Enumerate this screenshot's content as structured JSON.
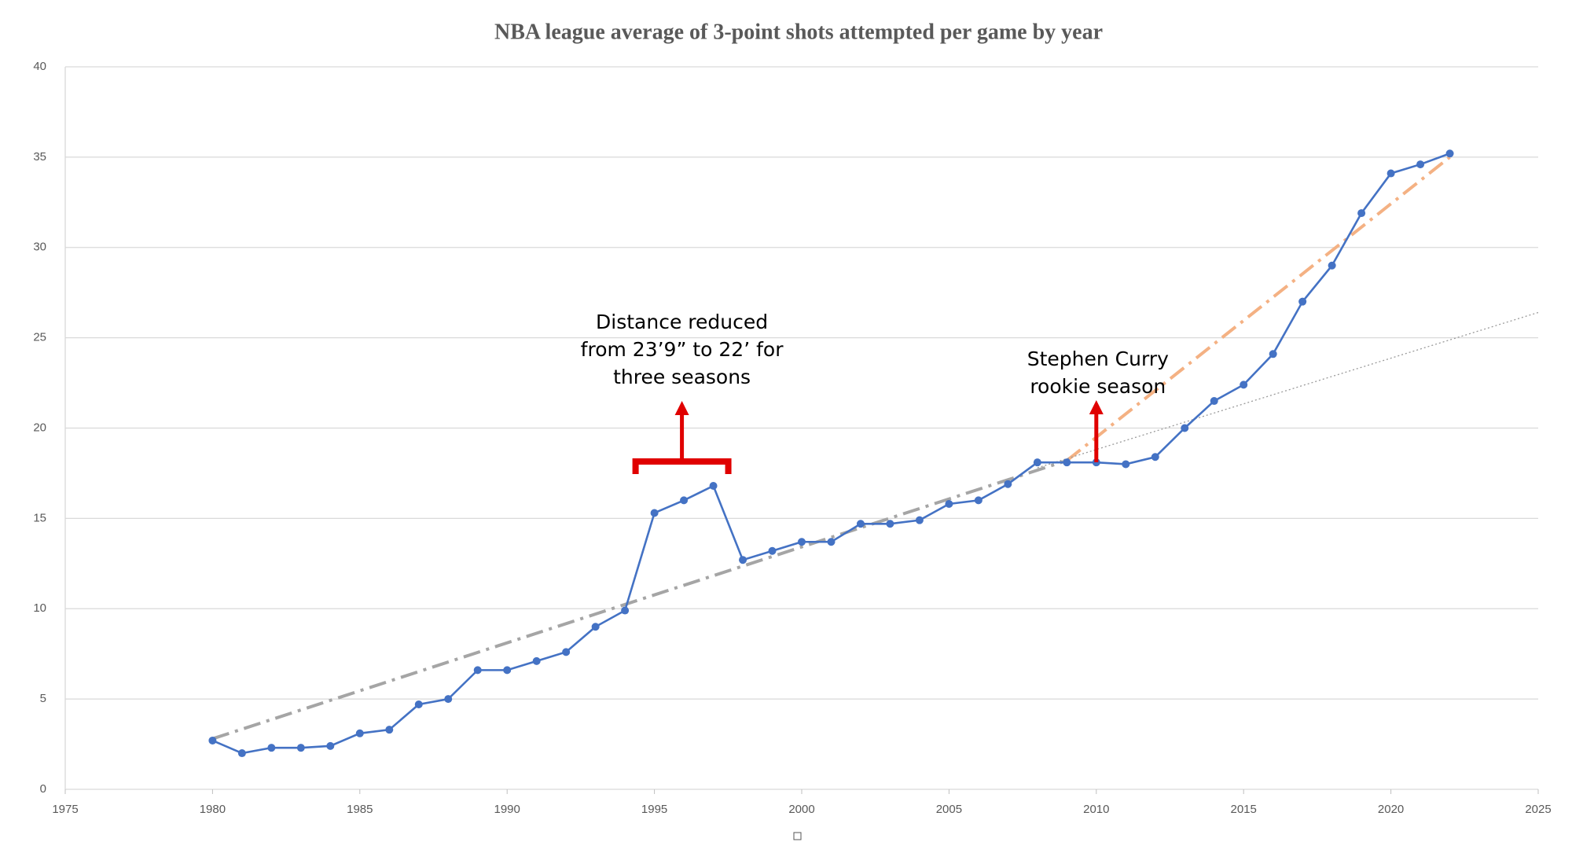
{
  "chart_data": {
    "type": "line",
    "title": "NBA league average of 3-point shots attempted per game by year",
    "x": [
      1980,
      1981,
      1982,
      1983,
      1984,
      1985,
      1986,
      1987,
      1988,
      1989,
      1990,
      1991,
      1992,
      1993,
      1994,
      1995,
      1996,
      1997,
      1998,
      1999,
      2000,
      2001,
      2002,
      2003,
      2004,
      2005,
      2006,
      2007,
      2008,
      2009,
      2010,
      2011,
      2012,
      2013,
      2014,
      2015,
      2016,
      2017,
      2018,
      2019,
      2020,
      2021,
      2022
    ],
    "values": [
      2.7,
      2.0,
      2.3,
      2.3,
      2.4,
      3.1,
      3.3,
      4.7,
      5.0,
      6.6,
      6.6,
      7.1,
      7.6,
      9.0,
      9.9,
      15.3,
      16.0,
      16.8,
      12.7,
      13.2,
      13.7,
      13.7,
      14.7,
      14.7,
      14.9,
      15.8,
      16.0,
      16.9,
      18.1,
      18.1,
      18.1,
      18.0,
      18.4,
      20.0,
      21.5,
      22.4,
      24.1,
      27.0,
      29.0,
      31.9,
      34.1,
      34.6,
      35.2
    ],
    "color": "#4472c4",
    "trendlines": [
      {
        "x": [
          1980,
          2009
        ],
        "values": [
          2.8,
          18.2
        ],
        "color": "#a5a5a5",
        "style": "dashdot"
      },
      {
        "x": [
          2009,
          2022
        ],
        "values": [
          18.2,
          35.0
        ],
        "color": "#f4b183",
        "style": "dashdot"
      },
      {
        "x": [
          2008,
          2025
        ],
        "values": [
          17.8,
          26.4
        ],
        "color": "#9a9a9a",
        "style": "dotted"
      }
    ],
    "xlim": [
      1975,
      2025
    ],
    "xticks": [
      1975,
      1980,
      1985,
      1990,
      1995,
      2000,
      2005,
      2010,
      2015,
      2020,
      2025
    ],
    "ylim": [
      0,
      40
    ],
    "yticks": [
      0,
      5,
      10,
      15,
      20,
      25,
      30,
      35,
      40
    ],
    "grid": true,
    "annotations": [
      {
        "lines": [
          "Distance reduced",
          "from 23’9” to 22’ for",
          "three seasons"
        ]
      },
      {
        "lines": [
          "Stephen Curry",
          "rookie season"
        ]
      }
    ]
  }
}
